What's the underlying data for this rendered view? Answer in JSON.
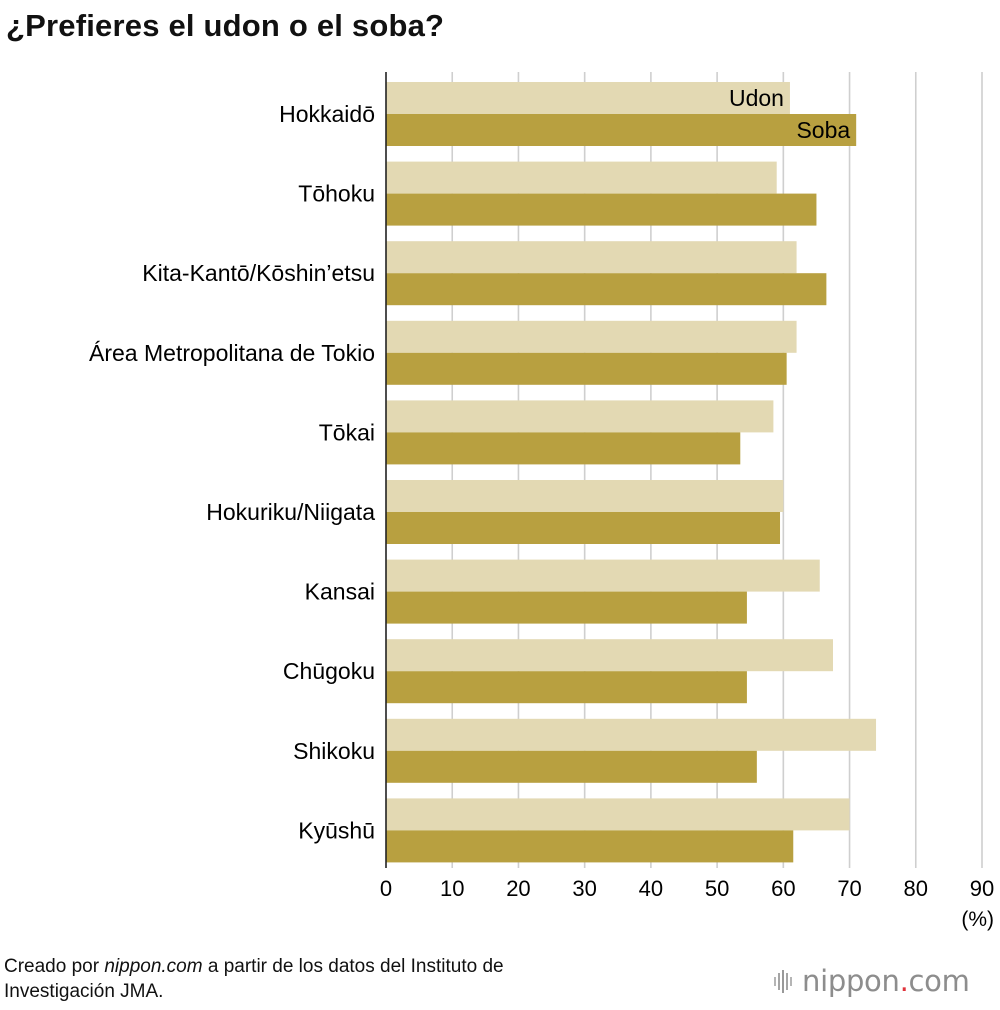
{
  "title": "¿Prefieres el udon o el soba?",
  "footer": {
    "prefix": "Creado por ",
    "source_site": "nippon.com",
    "suffix": " a partir de los datos del Instituto de",
    "line2": "Investigación JMA."
  },
  "logo": {
    "name": "nippon",
    "dot": ".",
    "tld": "com",
    "dot_color": "#e0323a"
  },
  "chart_data": {
    "type": "bar",
    "orientation": "horizontal",
    "categories": [
      "Hokkaidō",
      "Tōhoku",
      "Kita-Kantō/Kōshin’etsu",
      "Área Metropolitana de Tokio",
      "Tōkai",
      "Hokuriku/Niigata",
      "Kansai",
      "Chūgoku",
      "Shikoku",
      "Kyūshū"
    ],
    "series": [
      {
        "name": "Udon",
        "color": "#e3d9b3",
        "values": [
          61.0,
          59.0,
          62.0,
          62.0,
          58.5,
          60.0,
          65.5,
          67.5,
          74.0,
          70.0
        ]
      },
      {
        "name": "Soba",
        "color": "#b8a040",
        "values": [
          71.0,
          65.0,
          66.5,
          60.5,
          53.5,
          59.5,
          54.5,
          54.5,
          56.0,
          61.5
        ]
      }
    ],
    "xlim": [
      0,
      90
    ],
    "xticks": [
      "0",
      "10",
      "20",
      "30",
      "40",
      "50",
      "60",
      "70",
      "80",
      "90"
    ],
    "unit": "(%)",
    "grid": true,
    "legend": "inside-first-group"
  }
}
